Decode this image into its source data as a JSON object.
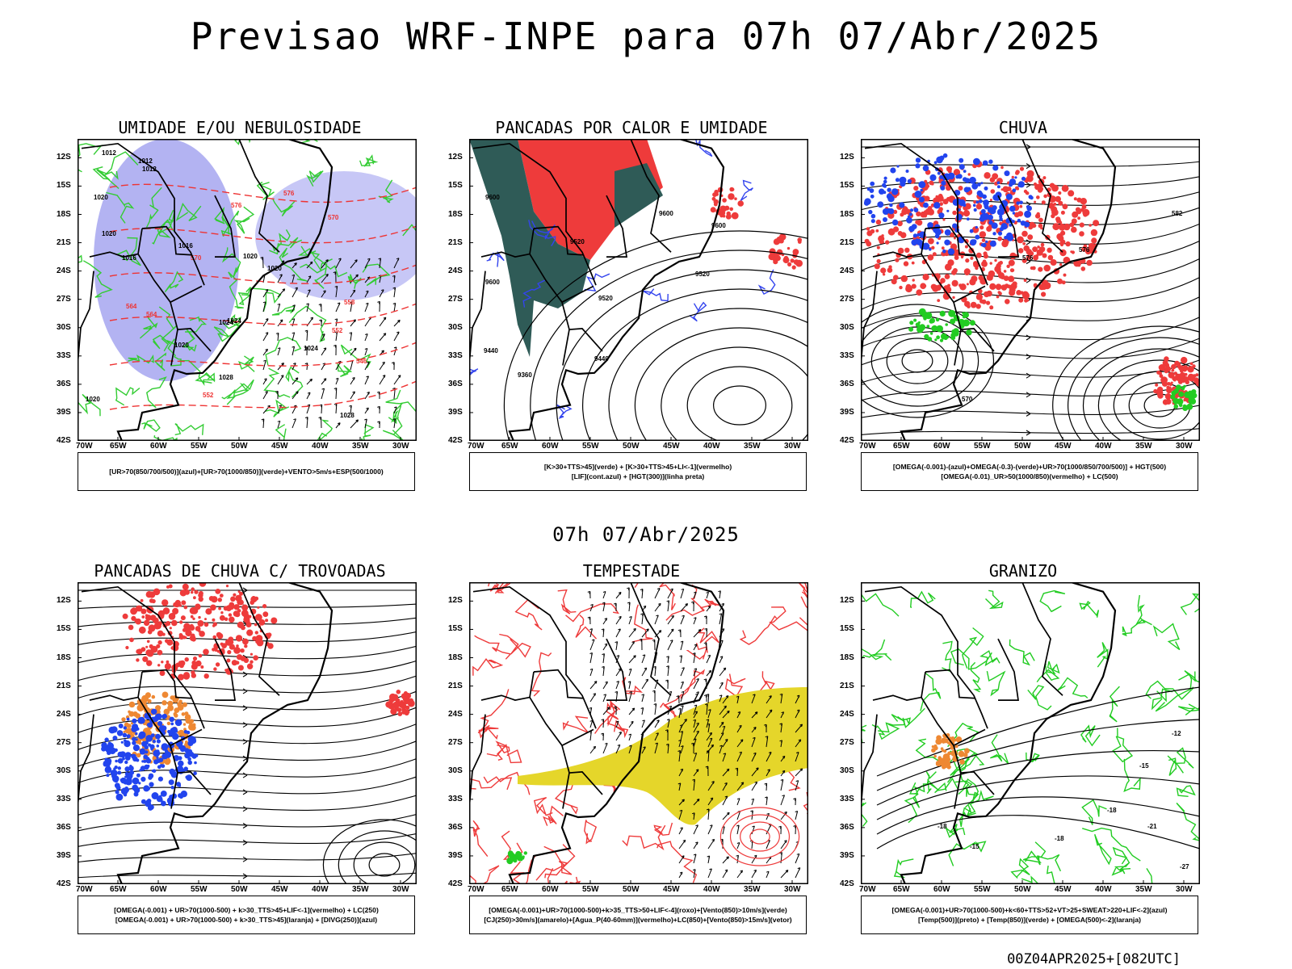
{
  "title": "Previsao WRF-INPE  para 07h 07/Abr/2025",
  "subtitle": "07h 07/Abr/2025",
  "footer": "00Z04APR2025+[082UTC]",
  "lat_labels": [
    "12S",
    "15S",
    "18S",
    "21S",
    "24S",
    "27S",
    "30S",
    "33S",
    "36S",
    "39S",
    "42S"
  ],
  "lon_labels": [
    "70W",
    "65W",
    "60W",
    "55W",
    "50W",
    "45W",
    "40W",
    "35W",
    "30W"
  ],
  "chart_data": [
    {
      "type": "map",
      "title": "UMIDADE E/OU NEBULOSIDADE",
      "legend": [
        "[UR>70(850/700/500)](azul)+[UR>70(1000/850)](verde)+VENTO>5m/s+ESP(500/1000)"
      ],
      "lon_range": [
        -70,
        -28
      ],
      "lat_range": [
        -42,
        -10
      ],
      "contour_labels": [
        "1012",
        "1012",
        "1012",
        "1020",
        "1020",
        "1016",
        "1016",
        "1020",
        "1020",
        "1024",
        "1024",
        "1020",
        "1028",
        "1020",
        "1024",
        "1028"
      ],
      "thickness_labels": [
        "576",
        "576",
        "570",
        "570",
        "564",
        "564",
        "558",
        "552",
        "546",
        "552"
      ],
      "colors": {
        "humid_upper": "#9999ee",
        "humid_lower": "#33cc33",
        "thickness": "#ee3333"
      }
    },
    {
      "type": "map",
      "title": "PANCADAS POR CALOR E UMIDADE",
      "legend": [
        "[K>30+TTS>45](verde) + [K>30+TTS>45+LI<-1](vermelho)",
        "[LIF](cont.azul) + [HGT(300)](linha preta)"
      ],
      "lon_range": [
        -70,
        -28
      ],
      "lat_range": [
        -42,
        -10
      ],
      "contour_labels": [
        "9600",
        "9600",
        "9600",
        "9520",
        "9600",
        "9520",
        "9520",
        "9440",
        "9440",
        "9360"
      ],
      "colors": {
        "k_tts": "#2f5b57",
        "k_tts_li": "#ee3b3b",
        "lif": "#3344ee"
      }
    },
    {
      "type": "map",
      "title": "CHUVA",
      "legend": [
        "[OMEGA(-0.001)-(azul)+OMEGA(-0.3)-(verde)+UR>70(1000/850/700/500)] + HGT(500)",
        "[OMEGA(-0.01)_UR>50(1000/850)(vermelho) + LC(500)"
      ],
      "lon_range": [
        -70,
        -28
      ],
      "lat_range": [
        -42,
        -10
      ],
      "contour_labels": [
        "582",
        "576",
        "576",
        "570"
      ],
      "colors": {
        "omega_upper": "#2244ee",
        "omega_strong": "#22cc22",
        "omega_lower": "#ee3b3b"
      }
    },
    {
      "type": "map",
      "title": "PANCADAS DE CHUVA C/ TROVOADAS",
      "legend": [
        "[OMEGA(-0.001) + UR>70(1000-500) + k>30_TTS>45+LIF<-1](vermelho) + LC(250)",
        "[OMEGA(-0.001) + UR>70(1000-500) + k>30_TTS>45](laranja) + [DIVG(250)](azul)"
      ],
      "lon_range": [
        -70,
        -28
      ],
      "lat_range": [
        -42,
        -10
      ],
      "colors": {
        "severe": "#ee3b3b",
        "moderate": "#ee8833",
        "divergence": "#2244ee"
      }
    },
    {
      "type": "map",
      "title": "TEMPESTADE",
      "legend": [
        "[OMEGA(-0.001)+UR>70(1000-500)+k>35_TTS>50+LIF<-4](roxo)+[Vento(850)>10m/s](verde)",
        "[CJ(250)>30m/s](amarelo)+[Agua_P(40-60mm)](vermelho)+LC(850)+[Vento(850)>15m/s](vetor)"
      ],
      "lon_range": [
        -70,
        -28
      ],
      "lat_range": [
        -42,
        -10
      ],
      "colors": {
        "jet": "#e5d62a",
        "water": "#ee3b3b",
        "wind": "#22cc22"
      }
    },
    {
      "type": "map",
      "title": "GRANIZO",
      "legend": [
        "[OMEGA(-0.001)+UR>70(1000-500)+k<60+TTS>52+VT>25+SWEAT>220+LIF<-2](azul)",
        "[Temp(500)](preto) + [Temp(850)](verde) + [OMEGA(500)<-2](laranja)"
      ],
      "lon_range": [
        -70,
        -28
      ],
      "lat_range": [
        -42,
        -10
      ],
      "contour_labels": [
        "-12",
        "-15",
        "-18",
        "-21",
        "-18",
        "-15",
        "-18",
        "-27"
      ],
      "colors": {
        "temp850": "#22cc22",
        "omega500": "#ee8833"
      }
    }
  ]
}
